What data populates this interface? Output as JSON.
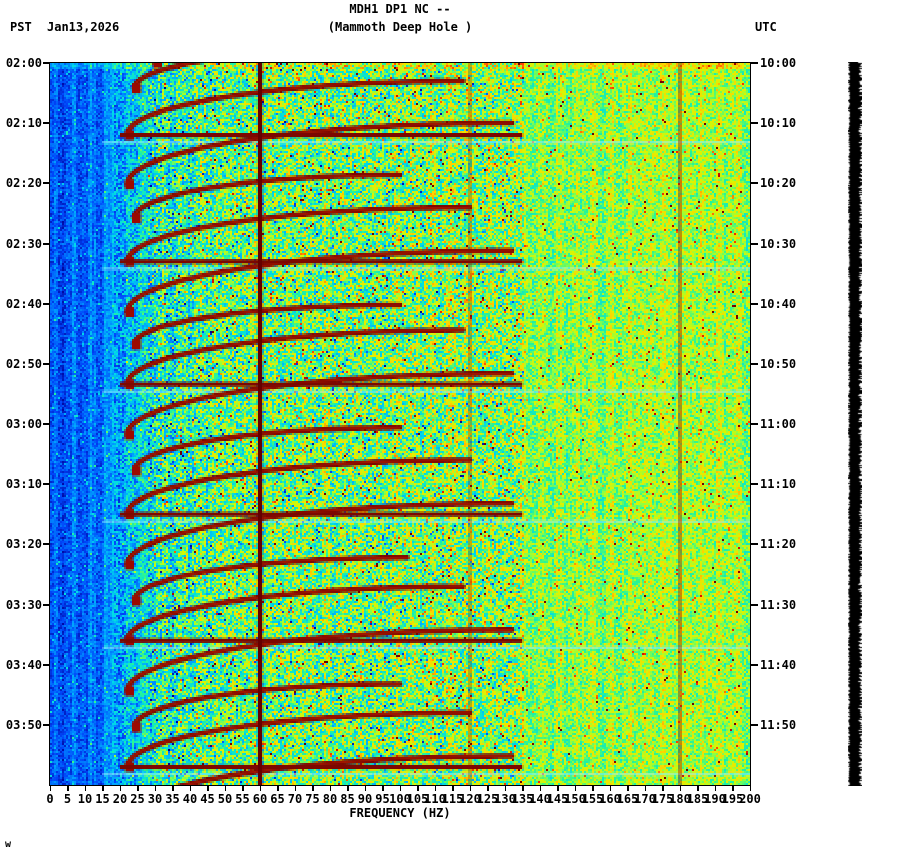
{
  "header": {
    "title": "MDH1 DP1 NC --",
    "subtitle": "(Mammoth Deep Hole )",
    "tz_left": "PST",
    "date": "Jan13,2026",
    "tz_right": "UTC"
  },
  "corner_mark": "w",
  "chart_data": {
    "type": "heatmap",
    "title": "MDH1 DP1 NC --",
    "subtitle": "(Mammoth Deep Hole )",
    "station": "MDH1 DP1 NC",
    "station_name": "Mammoth Deep Hole",
    "xlabel": "FREQUENCY (HZ)",
    "x_range": [
      0,
      200
    ],
    "x_tick_step": 5,
    "x_tick_labels": [
      "0",
      "5",
      "10",
      "15",
      "20",
      "25",
      "30",
      "35",
      "40",
      "45",
      "50",
      "55",
      "60",
      "65",
      "70",
      "75",
      "80",
      "85",
      "90",
      "95",
      "100",
      "105",
      "110",
      "115",
      "120",
      "125",
      "130",
      "135",
      "140",
      "145",
      "150",
      "155",
      "160",
      "165",
      "170",
      "175",
      "180",
      "185",
      "190",
      "195",
      "200"
    ],
    "time_axis": {
      "left_timezone": "PST",
      "right_timezone": "UTC",
      "date": "Jan13,2026",
      "minutes_per_gap": 10,
      "total_minutes": 120,
      "left_labels": [
        "02:00",
        "02:10",
        "02:20",
        "02:30",
        "02:40",
        "02:50",
        "03:00",
        "03:10",
        "03:20",
        "03:30",
        "03:40",
        "03:50"
      ],
      "right_labels": [
        "10:00",
        "10:10",
        "10:20",
        "10:30",
        "10:40",
        "10:50",
        "11:00",
        "11:10",
        "11:20",
        "11:30",
        "11:40",
        "11:50"
      ]
    },
    "colormap": "jet",
    "colormap_stops": [
      [
        0.0,
        [
          0,
          0,
          150
        ]
      ],
      [
        0.12,
        [
          0,
          70,
          250
        ]
      ],
      [
        0.25,
        [
          0,
          160,
          255
        ]
      ],
      [
        0.35,
        [
          0,
          220,
          230
        ]
      ],
      [
        0.45,
        [
          40,
          245,
          150
        ]
      ],
      [
        0.55,
        [
          150,
          255,
          60
        ]
      ],
      [
        0.63,
        [
          220,
          245,
          0
        ]
      ],
      [
        0.72,
        [
          255,
          210,
          0
        ]
      ],
      [
        0.8,
        [
          255,
          140,
          0
        ]
      ],
      [
        0.87,
        [
          255,
          60,
          0
        ]
      ],
      [
        0.94,
        [
          200,
          10,
          0
        ]
      ],
      [
        1.0,
        [
          110,
          0,
          0
        ]
      ]
    ],
    "features": {
      "persistent_lines_hz": [
        60,
        120,
        180
      ],
      "main_line_hz": 60,
      "main_line_color": "#650000",
      "arc_color": "#7c0800",
      "burst_color": "#7c0800",
      "light_row_color": "rgba(150,240,255,0.55)",
      "background_levels": [
        {
          "f": 0,
          "v": 0.12
        },
        {
          "f": 4,
          "v": 0.14
        },
        {
          "f": 12,
          "v": 0.18
        },
        {
          "f": 20,
          "v": 0.27
        },
        {
          "f": 30,
          "v": 0.4
        },
        {
          "f": 45,
          "v": 0.47
        },
        {
          "f": 60,
          "v": 0.51
        },
        {
          "f": 100,
          "v": 0.52
        },
        {
          "f": 135,
          "v": 0.54
        },
        {
          "f": 200,
          "v": 0.57
        }
      ],
      "broadband_bursts_t": [
        0.1,
        0.275,
        0.445,
        0.625,
        0.8,
        0.975
      ],
      "light_rows_t": [
        0.108,
        0.283,
        0.453,
        0.633,
        0.808,
        0.983
      ],
      "arcs": [
        {
          "t": 0.0,
          "f0": 30,
          "f1": 120,
          "rt": 0.06
        },
        {
          "t": 0.035,
          "f0": 24,
          "f1": 95,
          "rt": 0.055
        },
        {
          "t": 0.1,
          "f0": 22,
          "f1": 118,
          "rt": 0.075
        },
        {
          "t": 0.168,
          "f0": 22,
          "f1": 132,
          "rt": 0.085
        },
        {
          "t": 0.215,
          "f0": 24,
          "f1": 100,
          "rt": 0.06
        },
        {
          "t": 0.275,
          "f0": 22,
          "f1": 120,
          "rt": 0.075
        },
        {
          "t": 0.345,
          "f0": 22,
          "f1": 132,
          "rt": 0.085
        },
        {
          "t": 0.39,
          "f0": 24,
          "f1": 100,
          "rt": 0.055
        },
        {
          "t": 0.445,
          "f0": 22,
          "f1": 118,
          "rt": 0.075
        },
        {
          "t": 0.515,
          "f0": 22,
          "f1": 132,
          "rt": 0.085
        },
        {
          "t": 0.565,
          "f0": 24,
          "f1": 100,
          "rt": 0.06
        },
        {
          "t": 0.625,
          "f0": 22,
          "f1": 120,
          "rt": 0.075
        },
        {
          "t": 0.695,
          "f0": 22,
          "f1": 132,
          "rt": 0.085
        },
        {
          "t": 0.745,
          "f0": 24,
          "f1": 102,
          "rt": 0.06
        },
        {
          "t": 0.8,
          "f0": 22,
          "f1": 118,
          "rt": 0.075
        },
        {
          "t": 0.87,
          "f0": 22,
          "f1": 132,
          "rt": 0.085
        },
        {
          "t": 0.92,
          "f0": 24,
          "f1": 100,
          "rt": 0.06
        },
        {
          "t": 0.975,
          "f0": 22,
          "f1": 120,
          "rt": 0.075
        },
        {
          "t": 1.045,
          "f0": 22,
          "f1": 132,
          "rt": 0.085
        }
      ]
    }
  }
}
